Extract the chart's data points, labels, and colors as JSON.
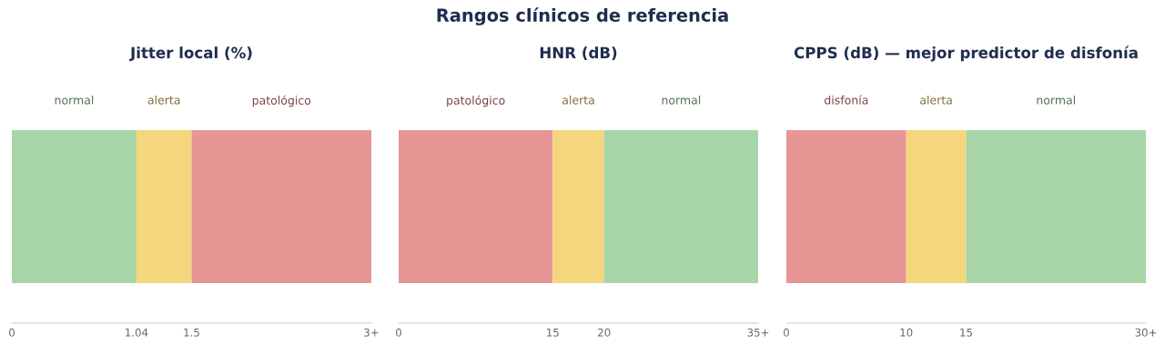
{
  "chart_data": [
    {
      "type": "bar",
      "orientation": "horizontal",
      "stacked": true,
      "title": "Jitter local (%)",
      "annotations": [
        "Rangos clínicos de referencia"
      ],
      "categories": [
        null
      ],
      "xlim": [
        0,
        3
      ],
      "xticks": [
        0,
        1.04,
        1.5,
        {
          "value": 3,
          "label": "3+"
        }
      ],
      "series": [
        {
          "name": "normal",
          "color": "#a8d5a8",
          "values": [
            1.04
          ]
        },
        {
          "name": "alerta",
          "color": "#f4d67c",
          "values": [
            0.46
          ]
        },
        {
          "name": "patológico",
          "color": "#e79696",
          "values": [
            1.5
          ]
        }
      ]
    },
    {
      "type": "bar",
      "orientation": "horizontal",
      "stacked": true,
      "title": "HNR (dB)",
      "categories": [
        null
      ],
      "xlim": [
        0,
        35
      ],
      "xticks": [
        0,
        15,
        20,
        {
          "value": 35,
          "label": "35+"
        }
      ],
      "series": [
        {
          "name": "patológico",
          "color": "#e79696",
          "values": [
            15
          ]
        },
        {
          "name": "alerta",
          "color": "#f4d67c",
          "values": [
            5
          ]
        },
        {
          "name": "normal",
          "color": "#a8d5a8",
          "values": [
            15
          ]
        }
      ]
    },
    {
      "type": "bar",
      "orientation": "horizontal",
      "stacked": true,
      "title": "CPPS (dB) — mejor predictor de disfonía",
      "categories": [
        null
      ],
      "xlim": [
        0,
        30
      ],
      "xticks": [
        0,
        10,
        15,
        {
          "value": 30,
          "label": "30+"
        }
      ],
      "series": [
        {
          "name": "disfonía",
          "color": "#e79696",
          "values": [
            10
          ]
        },
        {
          "name": "alerta",
          "color": "#f4d67c",
          "values": [
            5
          ]
        },
        {
          "name": "normal",
          "color": "#a8d5a8",
          "values": [
            15
          ]
        }
      ]
    }
  ]
}
